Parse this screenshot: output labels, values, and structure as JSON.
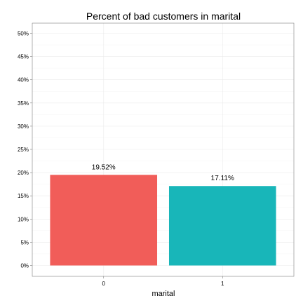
{
  "chart_data": {
    "type": "bar",
    "title": "Percent of bad customers in marital",
    "xlabel": "marital",
    "ylabel": "",
    "categories": [
      "0",
      "1"
    ],
    "values": [
      19.52,
      17.11
    ],
    "labels": [
      "19.52%",
      "17.11%"
    ],
    "colors": [
      "#f15d59",
      "#18b6b9"
    ],
    "ylim": [
      0,
      52
    ],
    "yticks": [
      0,
      5,
      10,
      15,
      20,
      25,
      30,
      35,
      40,
      45,
      50
    ],
    "ytick_labels": [
      "0%",
      "5%",
      "10%",
      "15%",
      "20%",
      "25%",
      "30%",
      "35%",
      "40%",
      "45%",
      "50%"
    ],
    "grid": true,
    "legend": "none"
  }
}
